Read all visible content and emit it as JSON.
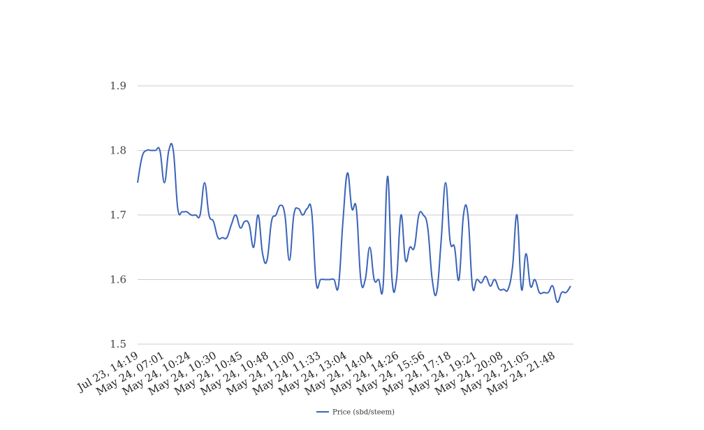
{
  "chart_data": {
    "type": "line",
    "title": "",
    "xlabel": "",
    "ylabel": "",
    "ylim": [
      1.5,
      1.9
    ],
    "yticks": [
      "1.5",
      "1.6",
      "1.7",
      "1.8",
      "1.9"
    ],
    "grid": true,
    "legend_position": "bottom-center",
    "x_tick_labels": [
      "Jul 23, 14:19",
      "May 24, 07:01",
      "May 24, 10:24",
      "May 24, 10:30",
      "May 24, 10:45",
      "May 24, 10:48",
      "May 24, 11:00",
      "May 24, 11:33",
      "May 24, 13:04",
      "May 24, 14:04",
      "May 24, 14:26",
      "May 24, 15:56",
      "May 24, 17:18",
      "May 24, 19:21",
      "May 24, 20:08",
      "May 24, 21:05",
      "May 24, 21:48"
    ],
    "series": [
      {
        "name": "Price (sbd/steem)",
        "color": "#3a63b8",
        "values": [
          1.75,
          1.79,
          1.8,
          1.8,
          1.8,
          1.8,
          1.75,
          1.8,
          1.8,
          1.71,
          1.705,
          1.705,
          1.7,
          1.7,
          1.7,
          1.75,
          1.7,
          1.69,
          1.665,
          1.665,
          1.665,
          1.685,
          1.7,
          1.68,
          1.69,
          1.685,
          1.65,
          1.7,
          1.64,
          1.63,
          1.69,
          1.7,
          1.715,
          1.7,
          1.63,
          1.7,
          1.71,
          1.7,
          1.71,
          1.705,
          1.595,
          1.6,
          1.6,
          1.6,
          1.6,
          1.59,
          1.69,
          1.765,
          1.71,
          1.71,
          1.6,
          1.6,
          1.65,
          1.6,
          1.6,
          1.59,
          1.76,
          1.6,
          1.6,
          1.7,
          1.63,
          1.65,
          1.65,
          1.7,
          1.7,
          1.68,
          1.6,
          1.58,
          1.66,
          1.75,
          1.66,
          1.65,
          1.6,
          1.7,
          1.7,
          1.59,
          1.6,
          1.595,
          1.605,
          1.59,
          1.6,
          1.585,
          1.585,
          1.585,
          1.62,
          1.7,
          1.585,
          1.64,
          1.59,
          1.6,
          1.58,
          1.58,
          1.58,
          1.59,
          1.565,
          1.58,
          1.58,
          1.59
        ]
      }
    ]
  }
}
